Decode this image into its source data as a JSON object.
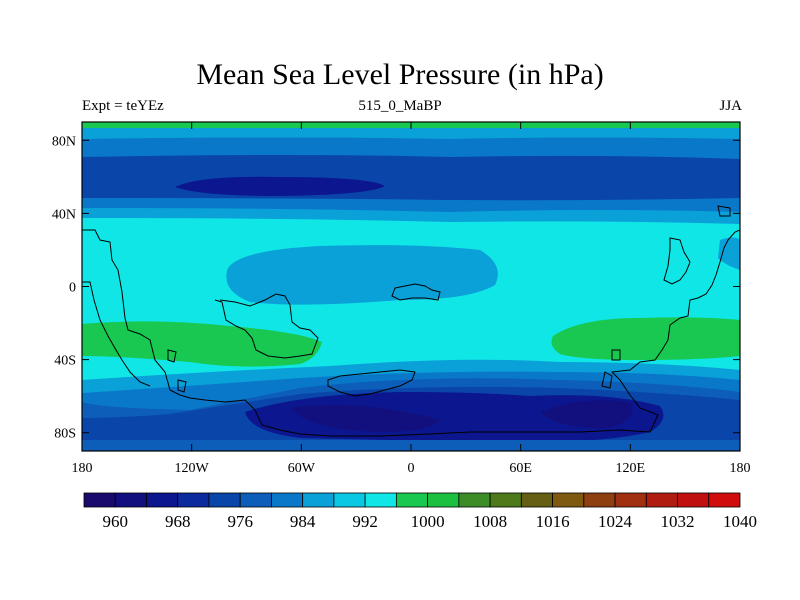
{
  "title": "Mean Sea Level Pressure (in hPa)",
  "subtitle_left": "Expt = teYEz",
  "subtitle_center": "515_0_MaBP",
  "subtitle_right": "JJA",
  "map": {
    "lon_range": [
      -180,
      180
    ],
    "lat_range": [
      -90,
      90
    ],
    "x_ticks": [
      {
        "lon": -180,
        "label": "180"
      },
      {
        "lon": -120,
        "label": "120W"
      },
      {
        "lon": -60,
        "label": "60W"
      },
      {
        "lon": 0,
        "label": "0"
      },
      {
        "lon": 60,
        "label": "60E"
      },
      {
        "lon": 120,
        "label": "120E"
      },
      {
        "lon": 180,
        "label": "180"
      }
    ],
    "y_ticks": [
      {
        "lat": 80,
        "label": "80N"
      },
      {
        "lat": 40,
        "label": "40N"
      },
      {
        "lat": 0,
        "label": "0"
      },
      {
        "lat": -40,
        "label": "40S"
      },
      {
        "lat": -80,
        "label": "80S"
      }
    ]
  },
  "colorbar": {
    "colors": [
      "#1a0a6e",
      "#12107e",
      "#0c168e",
      "#0a2a9e",
      "#0a46aa",
      "#0c5eb8",
      "#0a78c8",
      "#0aa0d8",
      "#08c8e4",
      "#10e6e6",
      "#18c850",
      "#1cc040",
      "#3c8c28",
      "#4e7a1c",
      "#665e14",
      "#7e5a10",
      "#8e4010",
      "#a03010",
      "#b01c10",
      "#c01010",
      "#d00c0c"
    ],
    "labels": [
      {
        "index": 1,
        "label": "960"
      },
      {
        "index": 3,
        "label": "968"
      },
      {
        "index": 5,
        "label": "976"
      },
      {
        "index": 7,
        "label": "984"
      },
      {
        "index": 9,
        "label": "992"
      },
      {
        "index": 11,
        "label": "1000"
      },
      {
        "index": 13,
        "label": "1008"
      },
      {
        "index": 15,
        "label": "1016"
      },
      {
        "index": 17,
        "label": "1024"
      },
      {
        "index": 19,
        "label": "1032"
      },
      {
        "index": 21,
        "label": "1040"
      }
    ]
  }
}
